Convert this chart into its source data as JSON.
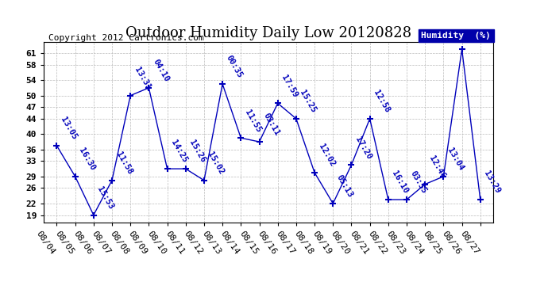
{
  "title": "Outdoor Humidity Daily Low 20120828",
  "copyright": "Copyright 2012 Cartronics.com",
  "legend_label": "Humidity  (%)",
  "x_labels": [
    "08/04",
    "08/05",
    "08/06",
    "08/07",
    "08/08",
    "08/09",
    "08/10",
    "08/11",
    "08/12",
    "08/13",
    "08/14",
    "08/15",
    "08/16",
    "08/17",
    "08/18",
    "08/19",
    "08/20",
    "08/21",
    "08/22",
    "08/23",
    "08/24",
    "08/25",
    "08/26",
    "08/27"
  ],
  "y_values": [
    37,
    29,
    19,
    28,
    50,
    52,
    31,
    31,
    28,
    53,
    39,
    38,
    48,
    44,
    30,
    22,
    32,
    44,
    23,
    23,
    27,
    29,
    62,
    23
  ],
  "point_labels": [
    "13:05",
    "16:30",
    "15:53",
    "11:58",
    "13:31",
    "04:10",
    "14:25",
    "15:26",
    "15:02",
    "00:35",
    "11:55",
    "03:11",
    "17:59",
    "15:25",
    "12:02",
    "05:13",
    "17:20",
    "12:58",
    "16:10",
    "03:55",
    "12:46",
    "13:04",
    "",
    "13:29"
  ],
  "y_ticks": [
    19,
    22,
    26,
    29,
    33,
    36,
    40,
    44,
    47,
    50,
    54,
    58,
    61
  ],
  "ylim": [
    17,
    64
  ],
  "line_color": "#0000bb",
  "grid_color": "#bbbbbb",
  "bg_color": "#ffffff",
  "title_fontsize": 13,
  "tick_fontsize": 8,
  "copyright_fontsize": 8,
  "point_label_fontsize": 7.5
}
